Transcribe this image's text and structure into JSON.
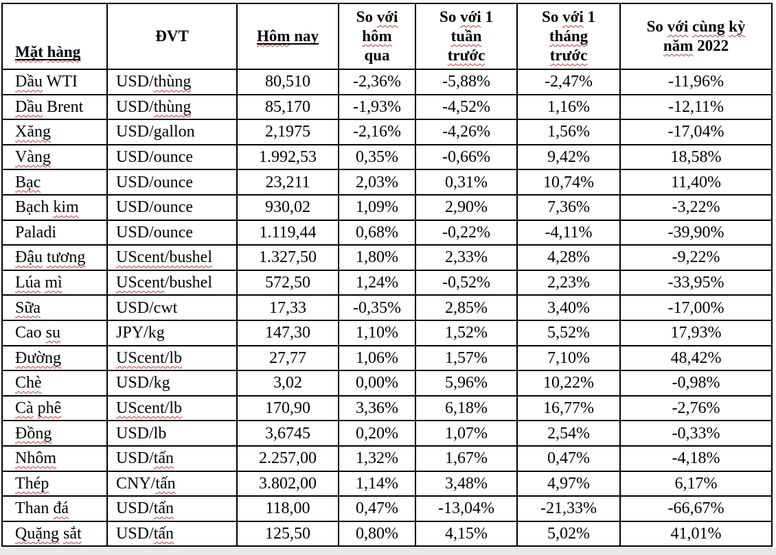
{
  "table": {
    "columns": [
      {
        "key": "commodity",
        "label": "_~Mặt~ ~hàng~_"
      },
      {
        "key": "unit",
        "label": "ĐVT"
      },
      {
        "key": "today",
        "label": "_~Hôm~ nay_"
      },
      {
        "key": "vs_yesterday",
        "label": "So ~với~\n~hôm~\nqua"
      },
      {
        "key": "vs_week",
        "label": "So ~với~ 1\n~tuần~\n~trước~"
      },
      {
        "key": "vs_month",
        "label": "So ~với~ 1\n~tháng~\n~trước~"
      },
      {
        "key": "vs_2022",
        "label": "So ~với~ ~cùng~ ~kỳ~\n~năm~ 2022"
      }
    ],
    "rows": [
      {
        "cells": [
          "~Dầu~ WTI",
          "USD/~thùng~",
          "80,510",
          "-2,36%",
          "-5,88%",
          "-2,47%",
          "-11,96%"
        ]
      },
      {
        "cells": [
          "~Dầu~ Brent",
          "USD/~thùng~",
          "85,170",
          "-1,93%",
          "-4,52%",
          "1,16%",
          "-12,11%"
        ]
      },
      {
        "cells": [
          "~Xăng~",
          "USD/gallon",
          "2,1975",
          "-2,16%",
          "-4,26%",
          "1,56%",
          "-17,04%"
        ]
      },
      {
        "cells": [
          "~Vàng~",
          "USD/ounce",
          "1.992,53",
          "0,35%",
          "-0,66%",
          "9,42%",
          "18,58%"
        ]
      },
      {
        "cells": [
          "~Bạc~",
          "USD/ounce",
          "23,211",
          "2,03%",
          "0,31%",
          "10,74%",
          "11,40%"
        ]
      },
      {
        "cells": [
          "Bạch ~kim~",
          "USD/ounce",
          "930,02",
          "1,09%",
          "2,90%",
          "7,36%",
          "-3,22%"
        ]
      },
      {
        "cells": [
          "Paladi",
          "USD/ounce",
          "1.119,44",
          "0,68%",
          "-0,22%",
          "-4,11%",
          "-39,90%"
        ]
      },
      {
        "cells": [
          "~Đậu~ ~tương~",
          "~UScent/bushel~",
          "1.327,50",
          "1,80%",
          "2,33%",
          "4,28%",
          "-9,22%"
        ]
      },
      {
        "cells": [
          "~Lúa~ ~mì~",
          "~UScent~/bushel",
          "572,50",
          "1,24%",
          "-0,52%",
          "2,23%",
          "-33,95%"
        ]
      },
      {
        "cells": [
          "~Sữa~",
          "USD/cwt",
          "17,33",
          "-0,35%",
          "2,85%",
          "3,40%",
          "-17,00%"
        ]
      },
      {
        "cells": [
          "Cao ~su~",
          "JPY/kg",
          "147,30",
          "1,10%",
          "1,52%",
          "5,52%",
          "17,93%"
        ]
      },
      {
        "cells": [
          "~Đường~",
          "~UScent/lb~",
          "27,77",
          "1,06%",
          "1,57%",
          "7,10%",
          "48,42%"
        ]
      },
      {
        "cells": [
          "~Chè~",
          "USD/kg",
          "3,02",
          "0,00%",
          "5,96%",
          "10,22%",
          "-0,98%"
        ]
      },
      {
        "cells": [
          "~Cà~ ~phê~",
          "~UScent/lb~",
          "170,90",
          "3,36%",
          "6,18%",
          "16,77%",
          "-2,76%"
        ]
      },
      {
        "cells": [
          "~Đồng~",
          "USD/lb",
          "3,6745",
          "0,20%",
          "1,07%",
          "2,54%",
          "-0,33%"
        ]
      },
      {
        "cells": [
          "~Nhôm~",
          "USD/~tấn~",
          "2.257,00",
          "1,32%",
          "1,67%",
          "0,47%",
          "-4,18%"
        ]
      },
      {
        "cells": [
          "~Thép~",
          "CNY/~tấn~",
          "3.802,00",
          "1,14%",
          "3,48%",
          "4,97%",
          "6,17%"
        ]
      },
      {
        "cells": [
          "Than ~đá~",
          "USD/~tấn~",
          "118,00",
          "0,47%",
          "-13,04%",
          "-21,33%",
          "-66,67%"
        ]
      },
      {
        "cells": [
          "~Quặng~ ~sắt~",
          "USD/~tấn~",
          "125,50",
          "0,80%",
          "4,15%",
          "5,02%",
          "41,01%"
        ]
      }
    ]
  },
  "colors": {
    "text": "#000000",
    "border": "#000000",
    "spellcheck_squiggle": "#c03434",
    "page_edge_strip": "#e8e8e8",
    "cell_background": "#ffffff"
  },
  "notes": {
    "squiggle_marker": "words wrapped in ~ have a red spell-check wavy underline",
    "solid_underline_marker": "text wrapped in _ has a solid black underline"
  }
}
